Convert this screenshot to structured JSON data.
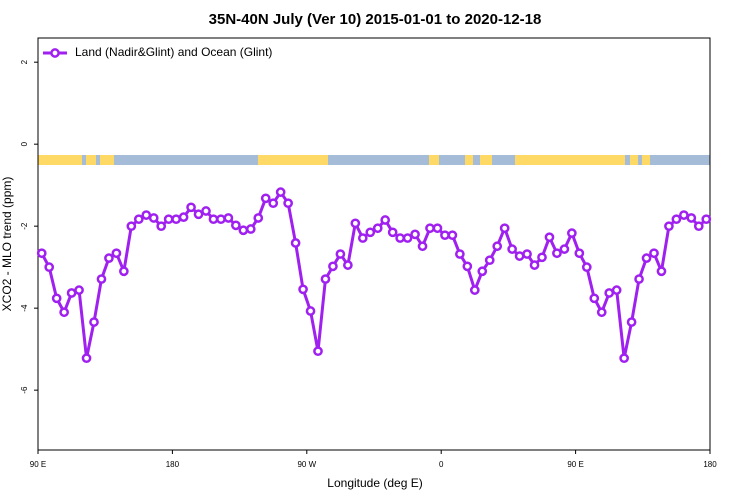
{
  "chart_data": {
    "type": "line",
    "title": "35N-40N July (Ver 10)   2015-01-01 to 2020-12-18",
    "x_label": "Longitude (deg E)",
    "y_label": "XCO2 - MLO trend (ppm)",
    "x": [
      92.5,
      97.5,
      102.5,
      107.5,
      112.5,
      117.5,
      122.5,
      127.5,
      132.5,
      137.5,
      142.5,
      147.5,
      152.5,
      157.5,
      162.5,
      167.5,
      172.5,
      177.5,
      182.5,
      187.5,
      192.5,
      197.5,
      202.5,
      207.5,
      212.5,
      217.5,
      222.5,
      227.5,
      232.5,
      237.5,
      242.5,
      247.5,
      252.5,
      257.5,
      262.5,
      267.5,
      272.5,
      277.5,
      282.5,
      287.5,
      292.5,
      297.5,
      302.5,
      307.5,
      312.5,
      317.5,
      322.5,
      327.5,
      332.5,
      337.5,
      342.5,
      347.5,
      352.5,
      357.5,
      362.5,
      367.5,
      372.5,
      377.5,
      382.5,
      387.5,
      392.5,
      397.5,
      402.5,
      407.5,
      412.5,
      417.5,
      422.5,
      427.5,
      432.5,
      437.5,
      442.5,
      447.5,
      452.5,
      457.5,
      462.5,
      467.5,
      472.5,
      477.5,
      482.5,
      487.5,
      492.5,
      497.5,
      502.5,
      507.5,
      512.5,
      517.5,
      522.5,
      527.5,
      532.5,
      537.5
    ],
    "series": [
      {
        "name": "Land (Nadir&Glint) and Ocean (Glint)",
        "color": "#a020f0",
        "values": [
          -2.66,
          -3.0,
          -3.76,
          -4.1,
          -3.63,
          -3.56,
          -5.22,
          -4.34,
          -3.29,
          -2.78,
          -2.66,
          -3.1,
          -2.0,
          -1.83,
          -1.73,
          -1.8,
          -2.0,
          -1.83,
          -1.83,
          -1.78,
          -1.54,
          -1.71,
          -1.63,
          -1.83,
          -1.83,
          -1.8,
          -1.98,
          -2.1,
          -2.07,
          -1.8,
          -1.32,
          -1.44,
          -1.17,
          -1.44,
          -2.41,
          -3.54,
          -4.07,
          -5.05,
          -3.29,
          -2.98,
          -2.68,
          -2.95,
          -1.93,
          -2.29,
          -2.15,
          -2.05,
          -1.85,
          -2.15,
          -2.29,
          -2.29,
          -2.2,
          -2.49,
          -2.05,
          -2.05,
          -2.22,
          -2.22,
          -2.68,
          -2.98,
          -3.56,
          -3.1,
          -2.83,
          -2.49,
          -2.05,
          -2.56,
          -2.73,
          -2.68,
          -2.95,
          -2.76,
          -2.27,
          -2.66,
          -2.56,
          -2.17,
          -2.66,
          -3.0,
          -3.76,
          -4.1,
          -3.63,
          -3.56,
          -5.22,
          -4.34,
          -3.29,
          -2.78,
          -2.66,
          -3.1,
          -2.0,
          -1.83,
          -1.73,
          -1.8,
          -2.0,
          -1.83
        ]
      }
    ],
    "xlim": [
      90,
      540
    ],
    "xticks": [
      {
        "value": 90,
        "label": "90 E"
      },
      180,
      {
        "value": 270,
        "label": "90 W"
      },
      {
        "value": 360,
        "label": "0"
      },
      {
        "value": 450,
        "label": "90 E"
      },
      {
        "value": 540,
        "label": "180"
      }
    ],
    "ylim": [
      -7.46,
      2.59
    ],
    "yticks": [
      2,
      0,
      -2,
      -4,
      -6
    ],
    "legend": "top-left"
  }
}
